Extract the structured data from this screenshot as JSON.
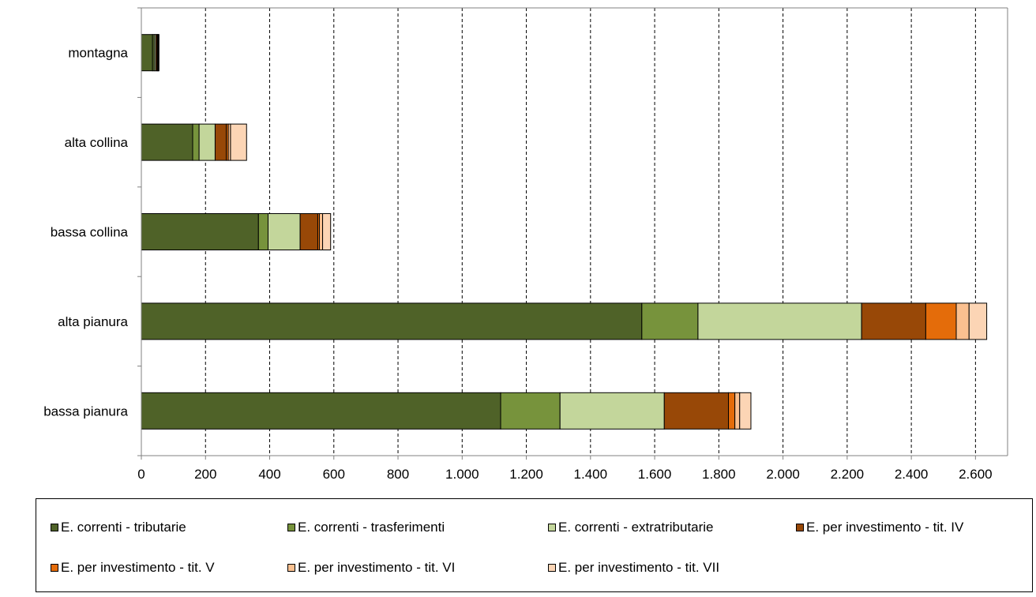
{
  "chart_data": {
    "type": "bar",
    "orientation": "horizontal",
    "stacked": true,
    "categories": [
      "montagna",
      "alta collina",
      "bassa collina",
      "alta pianura",
      "bassa pianura"
    ],
    "series": [
      {
        "name": "E. correnti - tributarie",
        "color": "#4f6228",
        "values": [
          35,
          160,
          365,
          1560,
          1120
        ]
      },
      {
        "name": "E. correnti - trasferimenti",
        "color": "#77933c",
        "values": [
          5,
          20,
          30,
          175,
          185
        ]
      },
      {
        "name": "E. correnti - extratributarie",
        "color": "#c3d69b",
        "values": [
          5,
          50,
          100,
          510,
          325
        ]
      },
      {
        "name": "E. per investimento - tit. IV",
        "color": "#984807",
        "values": [
          4,
          35,
          55,
          200,
          200
        ]
      },
      {
        "name": "E. per investimento - tit. V",
        "color": "#e46c0a",
        "values": [
          2,
          6,
          5,
          95,
          20
        ]
      },
      {
        "name": "E. per investimento - tit. VI",
        "color": "#fac090",
        "values": [
          2,
          7,
          10,
          40,
          15
        ]
      },
      {
        "name": "E. per investimento - tit. VII",
        "color": "#fcd5b5",
        "values": [
          2,
          50,
          25,
          55,
          35
        ]
      }
    ],
    "xlim": [
      0,
      2700
    ],
    "xticks": [
      0,
      200,
      400,
      600,
      800,
      1000,
      1200,
      1400,
      1600,
      1800,
      2000,
      2200,
      2400,
      2600
    ],
    "xtick_labels": [
      "0",
      "200",
      "400",
      "600",
      "800",
      "1.000",
      "1.200",
      "1.400",
      "1.600",
      "1.800",
      "2.000",
      "2.200",
      "2.400",
      "2.600"
    ],
    "grid": "vertical dashed",
    "legend_position": "bottom",
    "title": "",
    "xlabel": "",
    "ylabel": ""
  }
}
